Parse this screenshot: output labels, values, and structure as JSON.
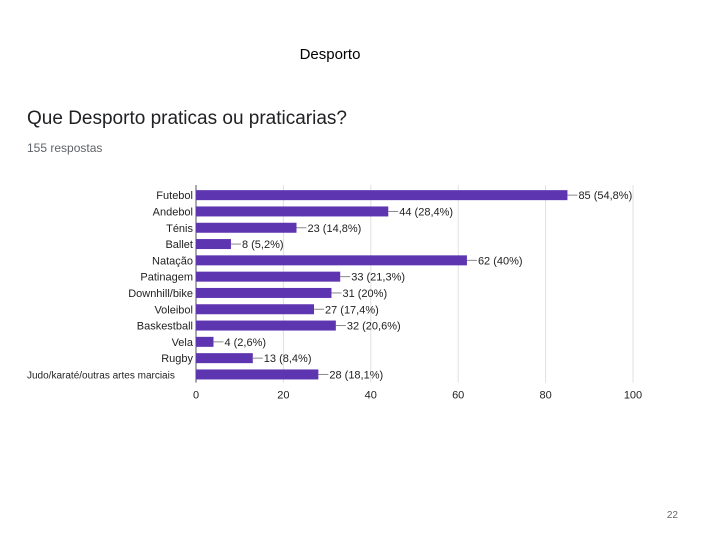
{
  "slide": {
    "title": "Desporto",
    "page_number": "22"
  },
  "form": {
    "question": "Que Desporto praticas ou praticarias?",
    "responses": "155 respostas"
  },
  "colors": {
    "bar": "#5e35b1",
    "grid": "#e0e0e0",
    "axis": "#555555"
  },
  "chart_data": {
    "type": "bar",
    "orientation": "horizontal",
    "categories": [
      "Futebol",
      "Andebol",
      "Ténis",
      "Ballet",
      "Natação",
      "Patinagem",
      "Downhill/bike",
      "Voleibol",
      "Baskestball",
      "Vela",
      "Rugby",
      "Judo/karaté/outras artes marciais"
    ],
    "values": [
      85,
      44,
      23,
      8,
      62,
      33,
      31,
      27,
      32,
      4,
      13,
      28
    ],
    "value_labels": [
      "85 (54,8%)",
      "44 (28,4%)",
      "23 (14,8%)",
      "8 (5,2%)",
      "62 (40%)",
      "33 (21,3%)",
      "31 (20%)",
      "27 (17,4%)",
      "32 (20,6%)",
      "4 (2,6%)",
      "13 (8,4%)",
      "28 (18,1%)"
    ],
    "xlim": [
      0,
      100
    ],
    "xticks": [
      "0",
      "20",
      "40",
      "60",
      "80",
      "100"
    ],
    "grid": true
  }
}
